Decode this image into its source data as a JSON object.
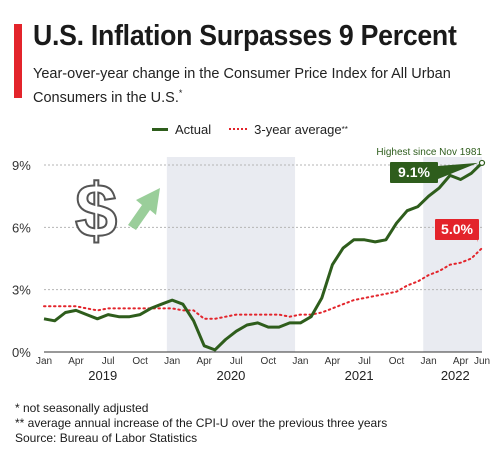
{
  "header": {
    "title": "U.S. Inflation Surpasses 9 Percent",
    "subtitle": "Year-over-year change in the Consumer Price Index for All Urban Consumers in the U.S.",
    "subtitle_mark": "*"
  },
  "legend": {
    "actual": "Actual",
    "average": "3-year average",
    "average_mark": "**"
  },
  "colors": {
    "actual": "#2e5d1c",
    "average": "#e3242b",
    "shade": "#e9ebf1",
    "accent": "#e3242b"
  },
  "icon": "dollar-rising-arrow-icon",
  "chart_data": {
    "type": "line",
    "x": [
      "2019-01",
      "2019-02",
      "2019-03",
      "2019-04",
      "2019-05",
      "2019-06",
      "2019-07",
      "2019-08",
      "2019-09",
      "2019-10",
      "2019-11",
      "2019-12",
      "2020-01",
      "2020-02",
      "2020-03",
      "2020-04",
      "2020-05",
      "2020-06",
      "2020-07",
      "2020-08",
      "2020-09",
      "2020-10",
      "2020-11",
      "2020-12",
      "2021-01",
      "2021-02",
      "2021-03",
      "2021-04",
      "2021-05",
      "2021-06",
      "2021-07",
      "2021-08",
      "2021-09",
      "2021-10",
      "2021-11",
      "2021-12",
      "2022-01",
      "2022-02",
      "2022-03",
      "2022-04",
      "2022-05",
      "2022-06"
    ],
    "series": [
      {
        "name": "Actual",
        "values": [
          1.6,
          1.5,
          1.9,
          2.0,
          1.8,
          1.6,
          1.8,
          1.7,
          1.7,
          1.8,
          2.1,
          2.3,
          2.5,
          2.3,
          1.5,
          0.3,
          0.1,
          0.6,
          1.0,
          1.3,
          1.4,
          1.2,
          1.2,
          1.4,
          1.4,
          1.7,
          2.6,
          4.2,
          5.0,
          5.4,
          5.4,
          5.3,
          5.4,
          6.2,
          6.8,
          7.0,
          7.5,
          7.9,
          8.5,
          8.3,
          8.6,
          9.1
        ]
      },
      {
        "name": "3-year average",
        "values": [
          2.2,
          2.2,
          2.2,
          2.2,
          2.1,
          2.0,
          2.1,
          2.1,
          2.1,
          2.1,
          2.1,
          2.1,
          2.1,
          2.0,
          2.0,
          1.6,
          1.6,
          1.7,
          1.8,
          1.8,
          1.8,
          1.8,
          1.8,
          1.7,
          1.8,
          1.8,
          1.9,
          2.1,
          2.3,
          2.5,
          2.6,
          2.7,
          2.8,
          2.9,
          3.2,
          3.4,
          3.7,
          3.9,
          4.2,
          4.3,
          4.5,
          5.0
        ]
      }
    ],
    "y_ticks": [
      "0%",
      "3%",
      "6%",
      "9%"
    ],
    "ylim": [
      0,
      9
    ],
    "month_labels": [
      "Jan",
      "Apr",
      "Jul",
      "Oct",
      "Jan",
      "Apr",
      "Jul",
      "Oct",
      "Jan",
      "Apr",
      "Jul",
      "Oct",
      "Jan",
      "Apr",
      "Jun"
    ],
    "years": [
      "2019",
      "2020",
      "2021",
      "2022"
    ],
    "shaded_years": [
      "2020",
      "2022"
    ],
    "grid": true,
    "annotations": {
      "actual_last": "9.1%",
      "average_last": "5.0%",
      "peak_note": "Highest since Nov 1981"
    }
  },
  "footnotes": [
    "*   not seasonally adjusted",
    "**  average annual increase of the CPI-U over the previous three years",
    "Source: Bureau of Labor Statistics"
  ]
}
